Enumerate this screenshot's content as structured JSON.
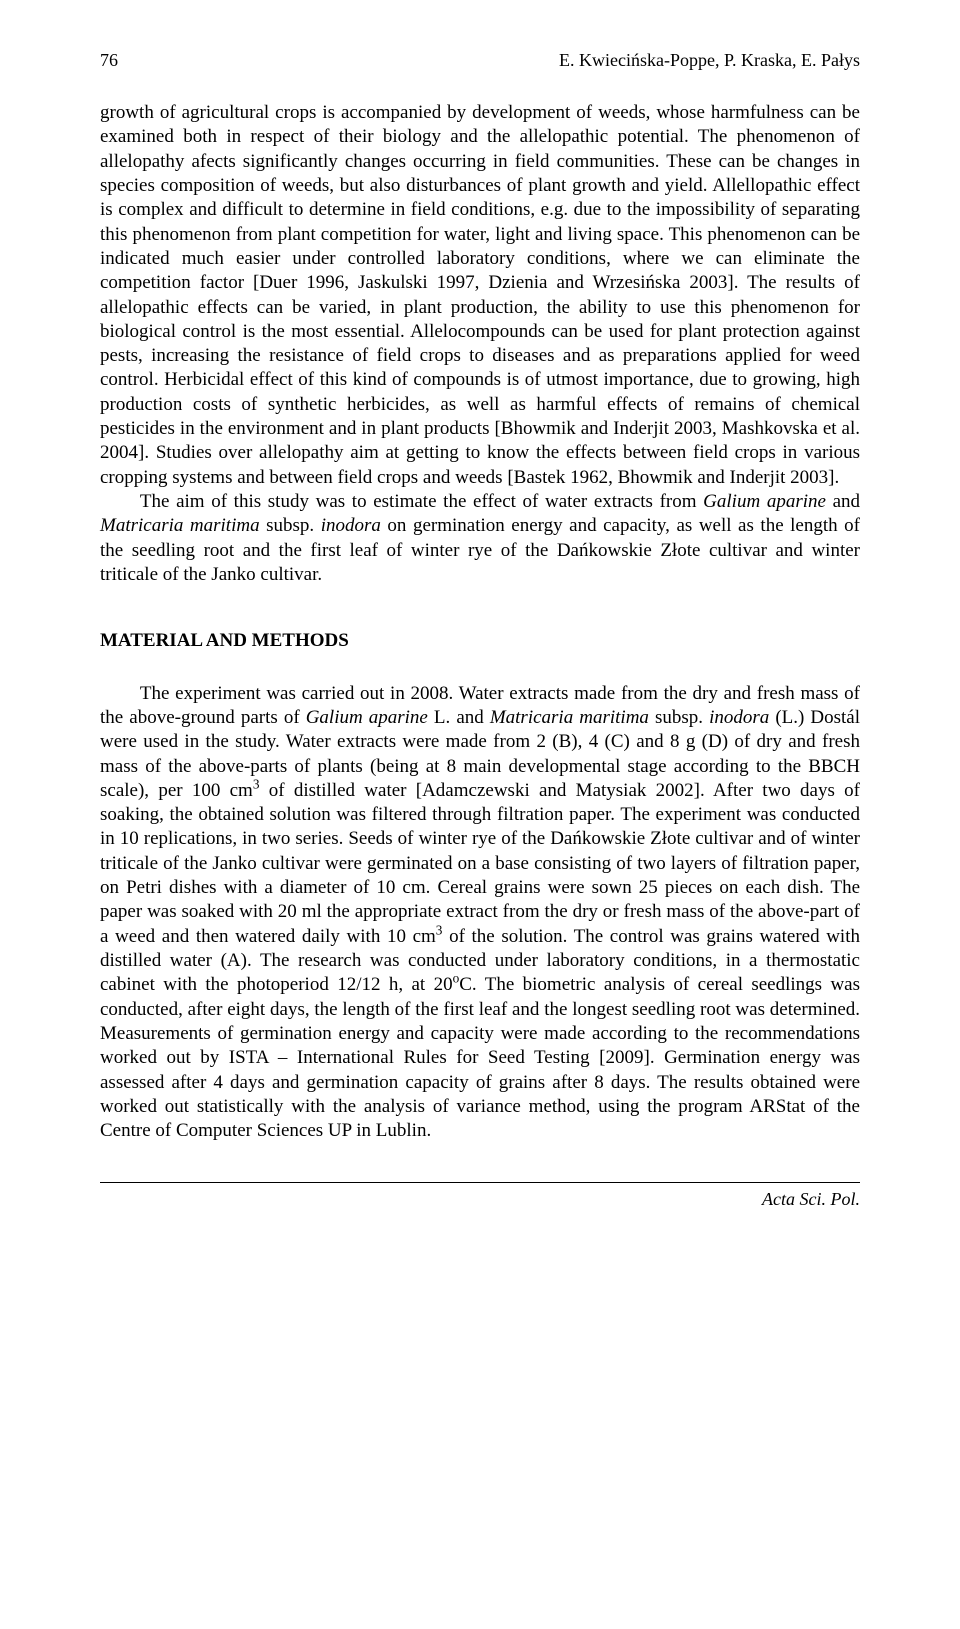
{
  "header": {
    "page_number": "76",
    "running_head": "E. Kwiecińska-Poppe, P. Kraska, E. Pałys"
  },
  "para1": "growth of agricultural crops is accompanied by development of weeds, whose harmfulness can be examined both in respect of their biology and the allelopathic potential. The phenomenon of allelopathy afects significantly changes occurring in field communities. These can be changes in species composition of weeds, but also disturbances of plant growth and yield. Allellopathic effect is complex and difficult to determine in field conditions, e.g. due to the impossibility of separating this phenomenon from plant competition for water, light and living space. This phenomenon can be indicated much easier under controlled laboratory conditions, where we can eliminate the competition factor [Duer 1996, Jaskulski 1997, Dzienia and Wrzesińska 2003]. The results of allelopathic effects can be varied, in plant production, the ability to use this phenomenon for biological control is the most essential. Allelocompounds can be used for plant protection against pests, increasing the resistance of field crops to diseases and as preparations applied for weed control. Herbicidal effect of this kind of compounds is of utmost importance, due to growing, high production costs of synthetic herbicides, as well as harmful effects of remains of chemical pesticides in the environment and in plant products [Bhowmik and Inderjit 2003, Mashkovska et al. 2004]. Studies over allelopathy aim at getting to know the effects between field crops in various cropping systems and between field crops and weeds [Bastek 1962, Bhowmik and Inderjit 2003].",
  "para2_a": "The aim of this study was to estimate the effect of water extracts from ",
  "para2_b": "Galium aparine",
  "para2_c": " and ",
  "para2_d": "Matricaria maritima",
  "para2_e": " subsp. ",
  "para2_f": "inodora",
  "para2_g": " on germination energy and capacity, as well as the length of the seedling root and the first leaf of winter rye of the Dańkowskie Złote cultivar and winter triticale of the Janko cultivar.",
  "section_title": "MATERIAL AND METHODS",
  "para3_a": "The experiment was carried out in 2008. Water extracts made from the dry and fresh mass of the above-ground parts of ",
  "para3_b": "Galium aparine",
  "para3_c": " L. and ",
  "para3_d": "Matricaria maritima",
  "para3_e": " subsp. ",
  "para3_f": "inodora",
  "para3_g": " (L.) Dostál were used in the study. Water extracts were made from 2 (B), 4 (C) and 8 g (D) of dry and fresh mass of the above-parts of plants (being at 8 main developmental stage according to the BBCH scale), per 100 cm",
  "para3_h": "3",
  "para3_i": " of distilled water [Adamczewski and Matysiak 2002]. After two days of soaking, the obtained solution was filtered through filtration paper. The experiment was conducted in 10 replications, in two series. Seeds of winter rye of the Dańkowskie Złote cultivar and of winter triticale of the Janko cultivar were germinated on a base consisting of two layers of filtration paper, on Petri dishes with a diameter of 10 cm. Cereal grains were sown 25 pieces on each dish. The paper was soaked with 20 ml the appropriate extract from the dry or fresh mass of the above-part of a weed and then watered daily with 10 cm",
  "para3_j": "3",
  "para3_k": " of the solution. The control was grains watered with distilled water (A). The research was conducted under laboratory conditions, in a thermostatic cabinet with the photoperiod 12/12 h, at 20",
  "para3_l": "o",
  "para3_m": "C. The biometric analysis of cereal seedlings was conducted, after eight days, the length of the first leaf and the longest seedling root was determined. Measurements of germination energy and capacity were made according to the recommendations worked out by ISTA – International Rules for Seed Testing [2009]. Germination energy was assessed after 4 days and germination capacity of grains after 8 days. The results obtained were worked out statistically with the analysis of variance method, using the program ARStat of the Centre of Computer Sciences UP in Lublin.",
  "footer": "Acta Sci. Pol."
}
